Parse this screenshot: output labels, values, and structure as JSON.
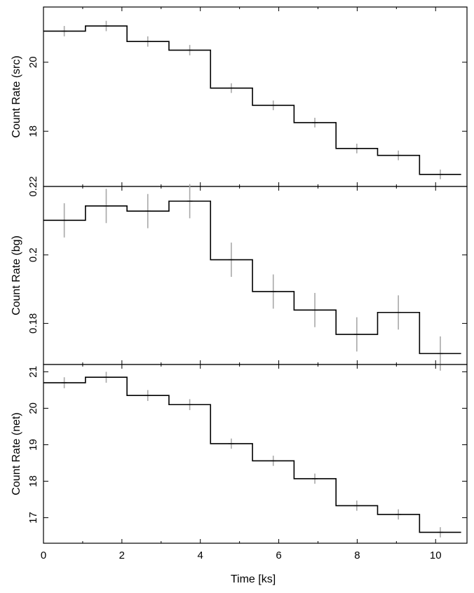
{
  "chart_data": {
    "type": "line",
    "xlabel": "Time [ks]",
    "xlim": [
      0,
      10.8
    ],
    "x_ticks": [
      "0",
      "2",
      "4",
      "6",
      "8",
      "10"
    ],
    "bin_edges": [
      0,
      1.07,
      2.13,
      3.2,
      4.26,
      5.33,
      6.39,
      7.46,
      8.52,
      9.59,
      10.65
    ],
    "bin_centers": [
      0.53,
      1.6,
      2.66,
      3.73,
      4.79,
      5.86,
      6.92,
      7.99,
      9.05,
      10.12
    ],
    "panels": [
      {
        "ylabel": "Count Rate (src)",
        "ylim": [
          16.4,
          21.6
        ],
        "y_ticks": [
          "18",
          "20"
        ],
        "values": [
          20.9,
          21.05,
          20.6,
          20.35,
          19.25,
          18.75,
          18.25,
          17.5,
          17.3,
          16.75
        ],
        "errors": [
          0.15,
          0.15,
          0.15,
          0.15,
          0.14,
          0.14,
          0.14,
          0.14,
          0.14,
          0.14
        ]
      },
      {
        "ylabel": "Count Rate (bg)",
        "ylim": [
          0.168,
          0.22
        ],
        "y_ticks": [
          "0.18",
          "0.2",
          "0.22"
        ],
        "values": [
          0.2101,
          0.2143,
          0.2128,
          0.2157,
          0.1986,
          0.1893,
          0.1839,
          0.1768,
          0.1832,
          0.1712
        ],
        "errors": [
          0.005,
          0.005,
          0.005,
          0.005,
          0.005,
          0.005,
          0.005,
          0.005,
          0.005,
          0.005
        ]
      },
      {
        "ylabel": "Count Rate (net)",
        "ylim": [
          16.3,
          21.2
        ],
        "y_ticks": [
          "17",
          "18",
          "19",
          "20",
          "21"
        ],
        "values": [
          20.7,
          20.85,
          20.35,
          20.1,
          19.03,
          18.56,
          18.07,
          17.33,
          17.09,
          16.6
        ],
        "errors": [
          0.15,
          0.15,
          0.15,
          0.15,
          0.14,
          0.14,
          0.14,
          0.14,
          0.14,
          0.14
        ]
      }
    ]
  }
}
